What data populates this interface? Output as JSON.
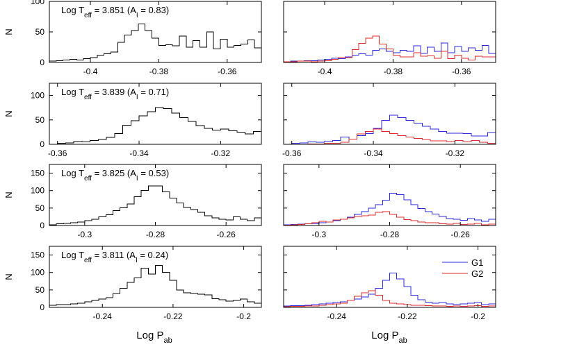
{
  "colors": {
    "single": "#000000",
    "G1": "#2a2ae0",
    "G2": "#e02a2a"
  },
  "xlabel_left": {
    "main": "Log P",
    "sub": "ab"
  },
  "xlabel_right": {
    "main": "Log P",
    "sub": "ab"
  },
  "chart_data": [
    {
      "type": "histogram",
      "row": 1,
      "column": "left",
      "annotation": {
        "pre": "Log T",
        "sub": "eff",
        "mid": " = 3.851 (A",
        "sub2": "I",
        "post": " = 0.83)"
      },
      "ylabel": "N",
      "xlim": [
        -0.412,
        -0.35
      ],
      "ylim": [
        0,
        100
      ],
      "xticks": [
        -0.4,
        -0.38,
        -0.36
      ],
      "xticklabels": [
        "-0.4",
        "-0.38",
        "-0.36"
      ],
      "yticks": [
        0,
        50,
        100
      ],
      "yticklabels": [
        "0",
        "50",
        "100"
      ],
      "bin_start": -0.412,
      "bin_width": 0.002,
      "series": [
        {
          "color": "single",
          "values": [
            2,
            3,
            4,
            5,
            4,
            6,
            8,
            12,
            14,
            17,
            33,
            45,
            52,
            63,
            52,
            40,
            28,
            29,
            27,
            43,
            25,
            36,
            25,
            50,
            22,
            38,
            25,
            28,
            30,
            37,
            24
          ]
        }
      ]
    },
    {
      "type": "histogram",
      "row": 1,
      "column": "right",
      "ylabel": "N",
      "xlim": [
        -0.412,
        -0.35
      ],
      "ylim": [
        0,
        100
      ],
      "xticks": [
        -0.4,
        -0.38,
        -0.36
      ],
      "xticklabels": [
        "-0.4",
        "-0.38",
        "-0.36"
      ],
      "yticks": [
        0,
        50,
        100
      ],
      "bin_start": -0.412,
      "bin_width": 0.002,
      "series": [
        {
          "name": "G1",
          "color": "G1",
          "values": [
            1,
            2,
            2,
            3,
            3,
            4,
            5,
            7,
            6,
            9,
            12,
            14,
            12,
            20,
            22,
            18,
            16,
            20,
            18,
            27,
            15,
            25,
            18,
            32,
            16,
            26,
            18,
            24,
            20,
            28,
            15
          ]
        },
        {
          "name": "G2",
          "color": "G2",
          "values": [
            1,
            1,
            2,
            2,
            1,
            2,
            3,
            5,
            8,
            8,
            21,
            31,
            40,
            43,
            30,
            22,
            12,
            9,
            9,
            16,
            10,
            11,
            7,
            18,
            6,
            12,
            7,
            4,
            10,
            9,
            9
          ]
        }
      ]
    },
    {
      "type": "histogram",
      "row": 2,
      "column": "left",
      "annotation": {
        "pre": "Log T",
        "sub": "eff",
        "mid": " = 3.839 (A",
        "sub2": "I",
        "post": " = 0.71)"
      },
      "ylabel": "N",
      "xlim": [
        -0.362,
        -0.31
      ],
      "ylim": [
        0,
        125
      ],
      "xticks": [
        -0.36,
        -0.34,
        -0.32
      ],
      "xticklabels": [
        "-0.36",
        "-0.34",
        "-0.32"
      ],
      "yticks": [
        0,
        50,
        100
      ],
      "yticklabels": [
        "0",
        "50",
        "100"
      ],
      "bin_start": -0.362,
      "bin_width": 0.002,
      "series": [
        {
          "color": "single",
          "values": [
            0,
            2,
            3,
            6,
            5,
            8,
            10,
            14,
            22,
            39,
            48,
            58,
            67,
            75,
            73,
            64,
            55,
            47,
            38,
            33,
            29,
            31,
            28,
            25,
            21,
            26
          ]
        }
      ]
    },
    {
      "type": "histogram",
      "row": 2,
      "column": "right",
      "ylabel": "N",
      "xlim": [
        -0.362,
        -0.31
      ],
      "ylim": [
        0,
        125
      ],
      "xticks": [
        -0.36,
        -0.34,
        -0.32
      ],
      "xticklabels": [
        "-0.36",
        "-0.34",
        "-0.32"
      ],
      "yticks": [
        0,
        50,
        100
      ],
      "bin_start": -0.362,
      "bin_width": 0.002,
      "series": [
        {
          "name": "G1",
          "color": "G1",
          "values": [
            0,
            2,
            3,
            5,
            4,
            6,
            8,
            15,
            11,
            18,
            22,
            33,
            49,
            60,
            55,
            49,
            43,
            37,
            31,
            26,
            23,
            23,
            22,
            17,
            17,
            24
          ]
        },
        {
          "name": "G2",
          "color": "G2",
          "values": [
            0,
            0,
            0,
            1,
            1,
            2,
            2,
            4,
            11,
            21,
            26,
            31,
            26,
            22,
            18,
            15,
            12,
            10,
            7,
            7,
            6,
            8,
            6,
            8,
            4,
            2
          ]
        }
      ]
    },
    {
      "type": "histogram",
      "row": 3,
      "column": "left",
      "annotation": {
        "pre": "Log T",
        "sub": "eff",
        "mid": " = 3.825 (A",
        "sub2": "I",
        "post": " = 0.53)"
      },
      "ylabel": "N",
      "xlim": [
        -0.31,
        -0.25
      ],
      "ylim": [
        0,
        175
      ],
      "xticks": [
        -0.3,
        -0.28,
        -0.26
      ],
      "xticklabels": [
        "-0.3",
        "-0.28",
        "-0.26"
      ],
      "yticks": [
        0,
        50,
        100,
        150
      ],
      "yticklabels": [
        "0",
        "50",
        "100",
        "150"
      ],
      "bin_start": -0.31,
      "bin_width": 0.002,
      "series": [
        {
          "color": "single",
          "values": [
            2,
            5,
            6,
            8,
            10,
            14,
            18,
            25,
            31,
            43,
            51,
            62,
            83,
            100,
            113,
            113,
            96,
            79,
            65,
            52,
            46,
            38,
            28,
            22,
            18,
            16,
            25,
            18,
            14,
            22
          ]
        }
      ]
    },
    {
      "type": "histogram",
      "row": 3,
      "column": "right",
      "ylabel": "N",
      "xlim": [
        -0.31,
        -0.25
      ],
      "ylim": [
        0,
        175
      ],
      "xticks": [
        -0.3,
        -0.28,
        -0.26
      ],
      "xticklabels": [
        "-0.3",
        "-0.28",
        "-0.26"
      ],
      "yticks": [
        0,
        50,
        100,
        150
      ],
      "bin_start": -0.31,
      "bin_width": 0.002,
      "series": [
        {
          "name": "G1",
          "color": "G1",
          "values": [
            2,
            3,
            4,
            5,
            6,
            8,
            10,
            14,
            18,
            24,
            32,
            40,
            50,
            60,
            73,
            92,
            88,
            74,
            60,
            49,
            40,
            33,
            26,
            20,
            18,
            15,
            20,
            16,
            12,
            18
          ]
        },
        {
          "name": "G2",
          "color": "G2",
          "values": [
            1,
            2,
            3,
            5,
            8,
            12,
            10,
            16,
            18,
            22,
            26,
            28,
            30,
            38,
            40,
            32,
            24,
            17,
            14,
            10,
            8,
            8,
            5,
            4,
            6,
            3,
            4,
            6,
            2,
            4
          ]
        }
      ]
    },
    {
      "type": "histogram",
      "row": 4,
      "column": "left",
      "annotation": {
        "pre": "Log T",
        "sub": "eff",
        "mid": " = 3.811 (A",
        "sub2": "I",
        "post": " = 0.24)"
      },
      "ylabel": "N",
      "xlim": [
        -0.255,
        -0.195
      ],
      "ylim": [
        0,
        175
      ],
      "xticks": [
        -0.24,
        -0.22,
        -0.2
      ],
      "xticklabels": [
        "-0.24",
        "-0.22",
        "-0.2"
      ],
      "yticks": [
        0,
        50,
        100,
        150
      ],
      "yticklabels": [
        "0",
        "50",
        "100",
        "150"
      ],
      "bin_start": -0.255,
      "bin_width": 0.002,
      "series": [
        {
          "color": "single",
          "values": [
            6,
            8,
            8,
            10,
            12,
            16,
            20,
            24,
            28,
            40,
            55,
            72,
            85,
            112,
            95,
            120,
            100,
            78,
            50,
            42,
            40,
            38,
            36,
            25,
            22,
            18,
            20,
            24,
            16,
            12
          ]
        }
      ]
    },
    {
      "type": "histogram",
      "row": 4,
      "column": "right",
      "ylabel": "N",
      "xlim": [
        -0.255,
        -0.195
      ],
      "ylim": [
        0,
        175
      ],
      "xticks": [
        -0.24,
        -0.22,
        -0.2
      ],
      "xticklabels": [
        "-0.24",
        "-0.22",
        "-0.2"
      ],
      "yticks": [
        0,
        50,
        100,
        150
      ],
      "legend": {
        "entries": [
          "G1",
          "G2"
        ],
        "position": "upper-right"
      },
      "bin_start": -0.255,
      "bin_width": 0.002,
      "series": [
        {
          "name": "G1",
          "color": "G1",
          "values": [
            4,
            5,
            5,
            6,
            8,
            10,
            12,
            14,
            16,
            20,
            24,
            30,
            38,
            55,
            78,
            98,
            82,
            60,
            35,
            22,
            15,
            12,
            14,
            10,
            8,
            10,
            12,
            14,
            8,
            10
          ]
        },
        {
          "name": "G2",
          "color": "G2",
          "values": [
            2,
            3,
            3,
            4,
            4,
            6,
            8,
            10,
            12,
            20,
            32,
            42,
            48,
            35,
            20,
            12,
            10,
            8,
            6,
            6,
            5,
            4,
            4,
            3,
            4,
            3,
            4,
            5,
            3,
            4
          ]
        }
      ]
    }
  ]
}
